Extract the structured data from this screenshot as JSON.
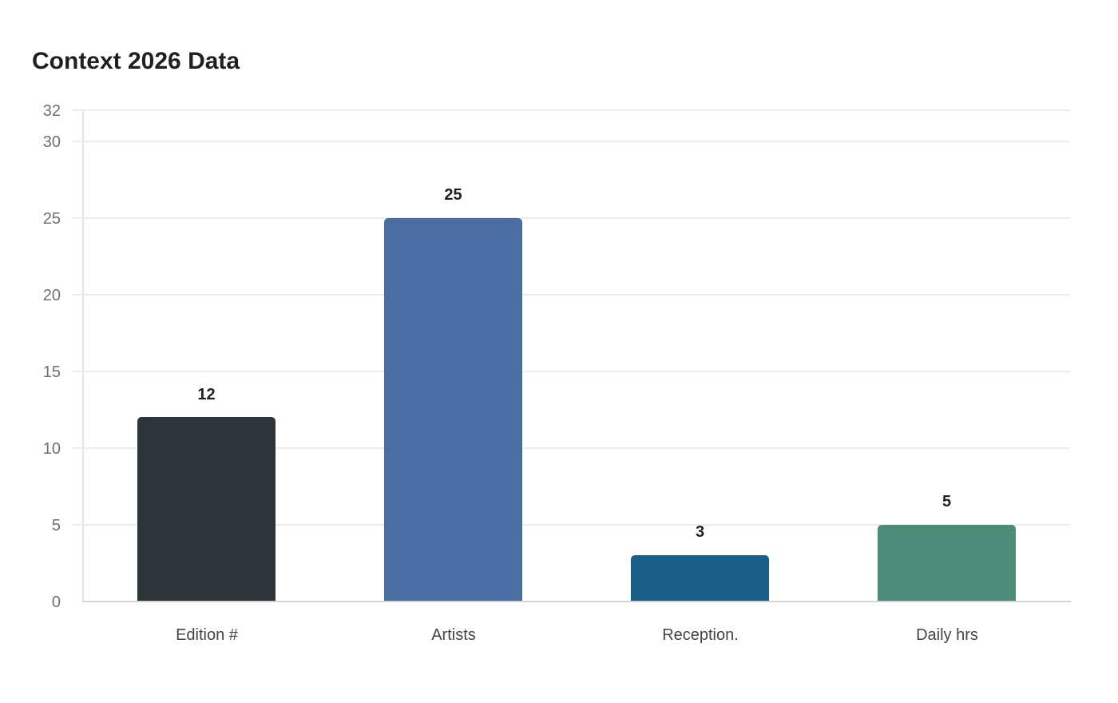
{
  "chart_data": {
    "type": "bar",
    "title": "Context 2026 Data",
    "categories": [
      "Edition #",
      "Artists",
      "Reception.",
      "Daily hrs"
    ],
    "values": [
      12,
      25,
      3,
      5
    ],
    "colors": [
      "#2e3538",
      "#4a6da3",
      "#1a5f87",
      "#4e8c7a"
    ],
    "xlabel": "",
    "ylabel": "",
    "ylim": [
      0,
      32
    ],
    "yticks": [
      0,
      5,
      10,
      15,
      20,
      25,
      30,
      32
    ],
    "grid": true,
    "legend": "none",
    "data_labels": true
  },
  "yticks_text": [
    "0",
    "5",
    "10",
    "15",
    "20",
    "25",
    "30",
    "32"
  ],
  "value_labels": [
    "12",
    "25",
    "3",
    "5"
  ]
}
